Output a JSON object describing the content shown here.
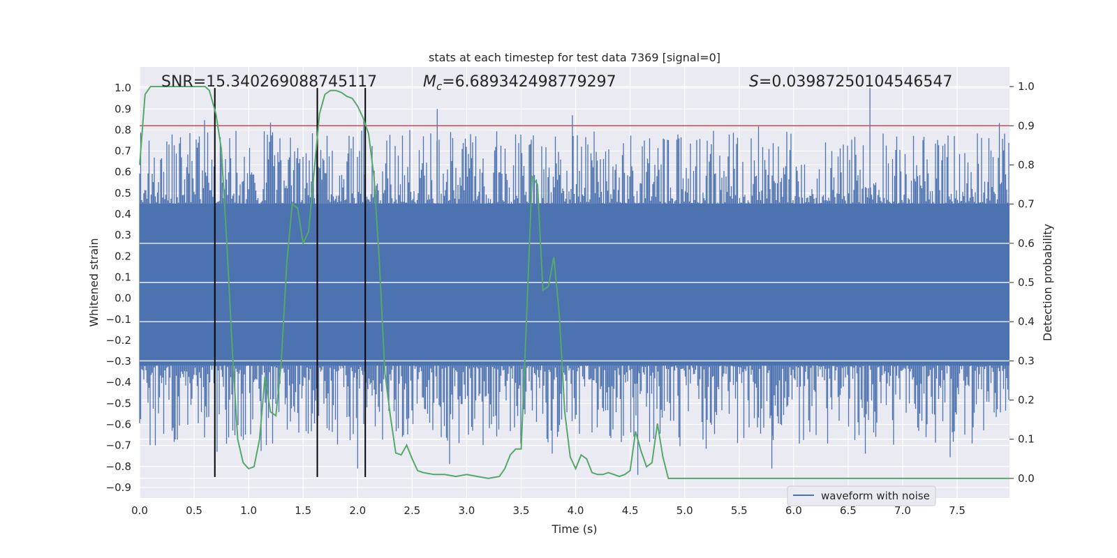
{
  "chart_data": {
    "type": "line",
    "title": "stats at each timestep for test data 7369 [signal=0]",
    "xlabel": "Time (s)",
    "ylabel_left": "Whitened strain",
    "ylabel_right": "Detection probability",
    "xlim": [
      0.0,
      7.98
    ],
    "ylim_left": [
      -0.95,
      1.1
    ],
    "ylim_right": [
      -0.05,
      1.05
    ],
    "x_ticks": [
      "0.0",
      "0.5",
      "1.0",
      "1.5",
      "2.0",
      "2.5",
      "3.0",
      "3.5",
      "4.0",
      "4.5",
      "5.0",
      "5.5",
      "6.0",
      "6.5",
      "7.0",
      "7.5"
    ],
    "y_left_ticks": [
      "−0.9",
      "−0.8",
      "−0.7",
      "−0.6",
      "−0.5",
      "−0.4",
      "−0.3",
      "−0.2",
      "−0.1",
      "0.0",
      "0.1",
      "0.2",
      "0.3",
      "0.4",
      "0.5",
      "0.6",
      "0.7",
      "0.8",
      "0.9",
      "1.0"
    ],
    "y_right_ticks": [
      "0.0",
      "0.1",
      "0.2",
      "0.3",
      "0.4",
      "0.5",
      "0.6",
      "0.7",
      "0.8",
      "0.9",
      "1.0"
    ],
    "grid": true,
    "legend": {
      "placement": "lower-right",
      "entries": [
        "waveform with noise"
      ]
    },
    "annotations": {
      "snr": "SNR=15.340269088745117",
      "mc_symbol": "M",
      "mc_sub": "c",
      "mc_value": "=6.689342498779297",
      "s_symbol": "S",
      "s_value": "=0.03987250104546547"
    },
    "threshold": 0.9,
    "vlines": [
      0.69,
      1.63,
      2.07
    ],
    "vline_range": [
      -0.85,
      1.0
    ],
    "noise": {
      "envelope_low": -0.32,
      "envelope_high": 0.45,
      "peak_max": 1.0,
      "peak_min": -0.84
    },
    "series": [
      {
        "name": "waveform with noise",
        "axis": "left",
        "kind": "noise"
      },
      {
        "axis": "right",
        "kind": "probability",
        "x": [
          0.0,
          0.05,
          0.1,
          0.15,
          0.2,
          0.3,
          0.4,
          0.5,
          0.6,
          0.64,
          0.7,
          0.75,
          0.8,
          0.85,
          0.9,
          0.95,
          1.0,
          1.05,
          1.1,
          1.15,
          1.2,
          1.25,
          1.3,
          1.35,
          1.4,
          1.45,
          1.5,
          1.55,
          1.6,
          1.65,
          1.7,
          1.75,
          1.8,
          1.85,
          1.9,
          1.95,
          2.0,
          2.05,
          2.1,
          2.15,
          2.2,
          2.25,
          2.3,
          2.35,
          2.4,
          2.45,
          2.5,
          2.55,
          2.6,
          2.7,
          2.8,
          2.9,
          3.0,
          3.1,
          3.2,
          3.3,
          3.35,
          3.4,
          3.45,
          3.5,
          3.55,
          3.6,
          3.65,
          3.7,
          3.75,
          3.8,
          3.85,
          3.9,
          3.95,
          4.0,
          4.05,
          4.1,
          4.15,
          4.2,
          4.25,
          4.3,
          4.35,
          4.4,
          4.45,
          4.5,
          4.55,
          4.6,
          4.65,
          4.7,
          4.75,
          4.8,
          4.85,
          4.9,
          4.95,
          5.0,
          5.05,
          5.1,
          5.15,
          5.2,
          5.3,
          5.5,
          6.0,
          6.1,
          6.2,
          6.5,
          7.0,
          7.2,
          7.3,
          7.4,
          7.5,
          7.6,
          7.65,
          7.7,
          7.75,
          7.8,
          7.85,
          7.9,
          7.98
        ],
        "y": [
          0.8,
          0.98,
          1.0,
          1.0,
          1.0,
          1.0,
          1.0,
          1.0,
          1.0,
          0.99,
          0.93,
          0.84,
          0.6,
          0.33,
          0.1,
          0.04,
          0.025,
          0.03,
          0.1,
          0.26,
          0.17,
          0.16,
          0.3,
          0.55,
          0.7,
          0.69,
          0.6,
          0.63,
          0.78,
          0.93,
          0.98,
          0.99,
          0.99,
          0.985,
          0.975,
          0.97,
          0.95,
          0.92,
          0.88,
          0.77,
          0.55,
          0.27,
          0.16,
          0.065,
          0.06,
          0.085,
          0.05,
          0.02,
          0.015,
          0.01,
          0.01,
          0.005,
          0.01,
          0.005,
          0.0,
          0.005,
          0.025,
          0.06,
          0.075,
          0.075,
          0.41,
          0.77,
          0.75,
          0.48,
          0.49,
          0.565,
          0.42,
          0.17,
          0.055,
          0.025,
          0.06,
          0.05,
          0.015,
          0.01,
          0.01,
          0.015,
          0.01,
          0.005,
          0.01,
          0.02,
          0.12,
          0.07,
          0.03,
          0.04,
          0.14,
          0.055,
          0.0,
          0.0,
          0.0,
          0.0,
          0.0,
          0.0,
          0.0,
          0.0,
          0.0,
          0.0,
          0.0,
          0.0,
          0.0,
          0.0,
          0.0,
          0.0,
          0.0,
          0.0,
          0.0,
          0.0,
          0.0,
          0.0,
          0.0,
          0.0,
          0.0,
          0.0,
          0.0
        ]
      }
    ],
    "colors": {
      "noise": "#4c72b0",
      "probability": "#55a868",
      "threshold": "#c44e52",
      "vlines": "#000000",
      "plot_bg": "#eaeaf2",
      "grid": "#ffffff"
    }
  }
}
